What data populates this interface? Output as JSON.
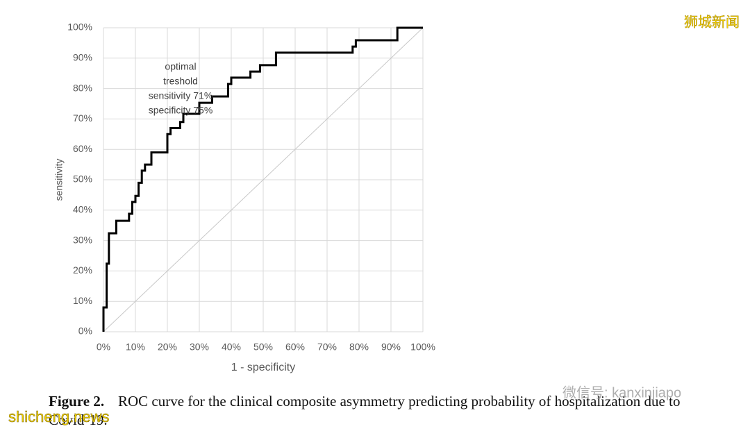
{
  "chart_data": {
    "type": "line",
    "ylabel": "sensitivity",
    "xlabel": "1 - specificity",
    "annotation": [
      "optimal",
      "treshold",
      "sensitivity 71%",
      "specificity 75%"
    ],
    "xlim": [
      0,
      100
    ],
    "ylim": [
      0,
      100
    ],
    "xticks": [
      {
        "value": 0,
        "label": "0%"
      },
      {
        "value": 10,
        "label": "10%"
      },
      {
        "value": 20,
        "label": "20%"
      },
      {
        "value": 30,
        "label": "30%"
      },
      {
        "value": 40,
        "label": "40%"
      },
      {
        "value": 50,
        "label": "50%"
      },
      {
        "value": 60,
        "label": "60%"
      },
      {
        "value": 70,
        "label": "70%"
      },
      {
        "value": 80,
        "label": "80%"
      },
      {
        "value": 90,
        "label": "90%"
      },
      {
        "value": 100,
        "label": "100%"
      }
    ],
    "yticks": [
      {
        "value": 0,
        "label": "0%"
      },
      {
        "value": 10,
        "label": "10%"
      },
      {
        "value": 20,
        "label": "20%"
      },
      {
        "value": 30,
        "label": "30%"
      },
      {
        "value": 40,
        "label": "40%"
      },
      {
        "value": 50,
        "label": "50%"
      },
      {
        "value": 60,
        "label": "60%"
      },
      {
        "value": 70,
        "label": "70%"
      },
      {
        "value": 80,
        "label": "80%"
      },
      {
        "value": 90,
        "label": "90%"
      },
      {
        "value": 100,
        "label": "100%"
      }
    ],
    "grid": true,
    "series": [
      {
        "color": "#000000",
        "x": [
          0,
          0,
          1,
          1,
          1.7,
          1.7,
          4,
          4,
          8,
          8,
          9,
          9,
          10,
          10,
          11,
          11,
          12,
          12,
          13,
          13,
          15,
          15,
          20,
          20,
          21,
          21,
          24,
          24,
          25,
          25,
          30,
          30,
          34,
          34,
          39,
          39,
          40,
          40,
          46,
          46,
          49,
          49,
          54,
          54,
          78,
          78,
          79,
          79,
          92,
          92,
          100
        ],
        "values": [
          0,
          8,
          8,
          22.4,
          22.4,
          32.4,
          32.4,
          36.5,
          36.5,
          38.8,
          38.8,
          42.7,
          42.7,
          44.7,
          44.7,
          49,
          49,
          53,
          53,
          55,
          55,
          59,
          59,
          65,
          65,
          67,
          67,
          69,
          69,
          71.7,
          71.7,
          75.3,
          75.3,
          77.4,
          77.4,
          81.5,
          81.5,
          83.6,
          83.6,
          85.6,
          85.6,
          87.7,
          87.7,
          91.8,
          91.8,
          93.8,
          93.8,
          95.9,
          95.9,
          100,
          100
        ]
      },
      {
        "color": "#c8c8c8",
        "x": [
          0,
          100
        ],
        "values": [
          0,
          100
        ]
      }
    ]
  },
  "caption": {
    "label": "Figure 2.",
    "lines": [
      "ROC curve for the clinical composite asymmetry predicting probability of hospitalization due to",
      "Covid-19."
    ]
  },
  "watermarks": {
    "top_right": "狮城新闻",
    "wechat": "微信号: kanxinjiapo",
    "site": "shicheng.news"
  }
}
